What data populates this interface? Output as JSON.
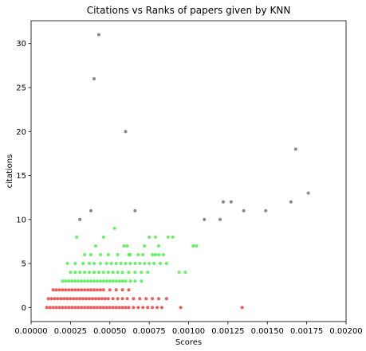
{
  "chart_data": {
    "type": "scatter",
    "title": "Citations vs Ranks of papers given by KNN",
    "xlabel": "Scores",
    "ylabel": "citations",
    "xlim": [
      0,
      0.002
    ],
    "ylim": [
      -1.6,
      32.6
    ],
    "xticks": [
      0,
      0.00025,
      0.0005,
      0.00075,
      0.001,
      0.00125,
      0.0015,
      0.00175,
      0.002
    ],
    "xtick_labels": [
      "0.00000",
      "0.00025",
      "0.00050",
      "0.00075",
      "0.00100",
      "0.00125",
      "0.00150",
      "0.00175",
      "0.00200"
    ],
    "yticks": [
      0,
      5,
      10,
      15,
      20,
      25,
      30
    ],
    "ytick_labels": [
      "0",
      "5",
      "10",
      "15",
      "20",
      "25",
      "30"
    ],
    "grid": false,
    "series": [
      {
        "color": "#606060",
        "points": [
          [
            0.00043,
            31
          ],
          [
            0.0004,
            26
          ],
          [
            0.0006,
            20
          ],
          [
            0.00168,
            18
          ],
          [
            0.00176,
            13
          ],
          [
            0.00122,
            12
          ],
          [
            0.00127,
            12
          ],
          [
            0.00165,
            12
          ],
          [
            0.00031,
            10
          ],
          [
            0.00038,
            11
          ],
          [
            0.00066,
            11
          ],
          [
            0.0011,
            10
          ],
          [
            0.0012,
            10
          ],
          [
            0.00135,
            11
          ],
          [
            0.00149,
            11
          ]
        ]
      },
      {
        "color": "#33ee33",
        "points": [
          [
            0.00053,
            9
          ],
          [
            0.00029,
            8
          ],
          [
            0.00046,
            8
          ],
          [
            0.00075,
            8
          ],
          [
            0.00079,
            8
          ],
          [
            0.00087,
            8
          ],
          [
            0.0009,
            8
          ],
          [
            0.00041,
            7
          ],
          [
            0.00059,
            7
          ],
          [
            0.00061,
            7
          ],
          [
            0.00072,
            7
          ],
          [
            0.00081,
            7
          ],
          [
            0.00103,
            7
          ],
          [
            0.00105,
            7
          ],
          [
            0.00034,
            6
          ],
          [
            0.00038,
            6
          ],
          [
            0.00044,
            6
          ],
          [
            0.00049,
            6
          ],
          [
            0.00055,
            6
          ],
          [
            0.00062,
            6
          ],
          [
            0.00063,
            6
          ],
          [
            0.00068,
            6
          ],
          [
            0.00071,
            6
          ],
          [
            0.00077,
            6
          ],
          [
            0.00079,
            6
          ],
          [
            0.00081,
            6
          ],
          [
            0.00084,
            6
          ],
          [
            0.00023,
            5
          ],
          [
            0.00028,
            5
          ],
          [
            0.00033,
            5
          ],
          [
            0.00037,
            5
          ],
          [
            0.0004,
            5
          ],
          [
            0.00044,
            5
          ],
          [
            0.00048,
            5
          ],
          [
            0.00051,
            5
          ],
          [
            0.00054,
            5
          ],
          [
            0.00057,
            5
          ],
          [
            0.0006,
            5
          ],
          [
            0.00063,
            5
          ],
          [
            0.00066,
            5
          ],
          [
            0.00069,
            5
          ],
          [
            0.00072,
            5
          ],
          [
            0.00075,
            5
          ],
          [
            0.00078,
            5
          ],
          [
            0.00082,
            5
          ],
          [
            0.00086,
            5
          ],
          [
            0.00025,
            4
          ],
          [
            0.00028,
            4
          ],
          [
            0.00031,
            4
          ],
          [
            0.00034,
            4
          ],
          [
            0.00037,
            4
          ],
          [
            0.0004,
            4
          ],
          [
            0.00043,
            4
          ],
          [
            0.00046,
            4
          ],
          [
            0.00049,
            4
          ],
          [
            0.00052,
            4
          ],
          [
            0.00055,
            4
          ],
          [
            0.00058,
            4
          ],
          [
            0.00062,
            4
          ],
          [
            0.00066,
            4
          ],
          [
            0.0007,
            4
          ],
          [
            0.00074,
            4
          ],
          [
            0.00094,
            4
          ],
          [
            0.00098,
            4
          ],
          [
            0.0002,
            3
          ],
          [
            0.00022,
            3
          ],
          [
            0.00024,
            3
          ],
          [
            0.00026,
            3
          ],
          [
            0.00028,
            3
          ],
          [
            0.0003,
            3
          ],
          [
            0.00032,
            3
          ],
          [
            0.00034,
            3
          ],
          [
            0.00036,
            3
          ],
          [
            0.00038,
            3
          ],
          [
            0.0004,
            3
          ],
          [
            0.00042,
            3
          ],
          [
            0.00044,
            3
          ],
          [
            0.00046,
            3
          ],
          [
            0.00048,
            3
          ],
          [
            0.0005,
            3
          ],
          [
            0.00052,
            3
          ],
          [
            0.00054,
            3
          ],
          [
            0.00056,
            3
          ],
          [
            0.00058,
            3
          ],
          [
            0.0006,
            3
          ],
          [
            0.00063,
            3
          ],
          [
            0.00066,
            3
          ],
          [
            0.0007,
            3
          ]
        ]
      },
      {
        "color": "#ee2222",
        "points": [
          [
            0.00014,
            2
          ],
          [
            0.00016,
            2
          ],
          [
            0.00018,
            2
          ],
          [
            0.0002,
            2
          ],
          [
            0.00022,
            2
          ],
          [
            0.00024,
            2
          ],
          [
            0.00026,
            2
          ],
          [
            0.00028,
            2
          ],
          [
            0.0003,
            2
          ],
          [
            0.00032,
            2
          ],
          [
            0.00034,
            2
          ],
          [
            0.00036,
            2
          ],
          [
            0.00038,
            2
          ],
          [
            0.0004,
            2
          ],
          [
            0.00042,
            2
          ],
          [
            0.00044,
            2
          ],
          [
            0.00046,
            2
          ],
          [
            0.0005,
            2
          ],
          [
            0.00054,
            2
          ],
          [
            0.00058,
            2
          ],
          [
            0.00062,
            2
          ],
          [
            0.00011,
            1
          ],
          [
            0.00013,
            1
          ],
          [
            0.00015,
            1
          ],
          [
            0.00017,
            1
          ],
          [
            0.00019,
            1
          ],
          [
            0.00021,
            1
          ],
          [
            0.00023,
            1
          ],
          [
            0.00025,
            1
          ],
          [
            0.00027,
            1
          ],
          [
            0.00029,
            1
          ],
          [
            0.00031,
            1
          ],
          [
            0.00033,
            1
          ],
          [
            0.00035,
            1
          ],
          [
            0.00037,
            1
          ],
          [
            0.00039,
            1
          ],
          [
            0.00041,
            1
          ],
          [
            0.00043,
            1
          ],
          [
            0.00045,
            1
          ],
          [
            0.00047,
            1
          ],
          [
            0.00049,
            1
          ],
          [
            0.00052,
            1
          ],
          [
            0.00055,
            1
          ],
          [
            0.00058,
            1
          ],
          [
            0.00061,
            1
          ],
          [
            0.00065,
            1
          ],
          [
            0.00069,
            1
          ],
          [
            0.00073,
            1
          ],
          [
            0.00077,
            1
          ],
          [
            0.00081,
            1
          ],
          [
            0.00086,
            1
          ],
          [
            0.0001,
            0
          ],
          [
            0.00012,
            0
          ],
          [
            0.00014,
            0
          ],
          [
            0.00016,
            0
          ],
          [
            0.00018,
            0
          ],
          [
            0.0002,
            0
          ],
          [
            0.00022,
            0
          ],
          [
            0.00024,
            0
          ],
          [
            0.00026,
            0
          ],
          [
            0.00028,
            0
          ],
          [
            0.0003,
            0
          ],
          [
            0.00032,
            0
          ],
          [
            0.00034,
            0
          ],
          [
            0.00036,
            0
          ],
          [
            0.00038,
            0
          ],
          [
            0.0004,
            0
          ],
          [
            0.00042,
            0
          ],
          [
            0.00044,
            0
          ],
          [
            0.00046,
            0
          ],
          [
            0.00048,
            0
          ],
          [
            0.0005,
            0
          ],
          [
            0.00052,
            0
          ],
          [
            0.00054,
            0
          ],
          [
            0.00056,
            0
          ],
          [
            0.00058,
            0
          ],
          [
            0.0006,
            0
          ],
          [
            0.00062,
            0
          ],
          [
            0.00065,
            0
          ],
          [
            0.00068,
            0
          ],
          [
            0.00071,
            0
          ],
          [
            0.00074,
            0
          ],
          [
            0.00077,
            0
          ],
          [
            0.0008,
            0
          ],
          [
            0.00083,
            0
          ],
          [
            0.00095,
            0
          ],
          [
            0.00134,
            0
          ]
        ]
      }
    ]
  }
}
